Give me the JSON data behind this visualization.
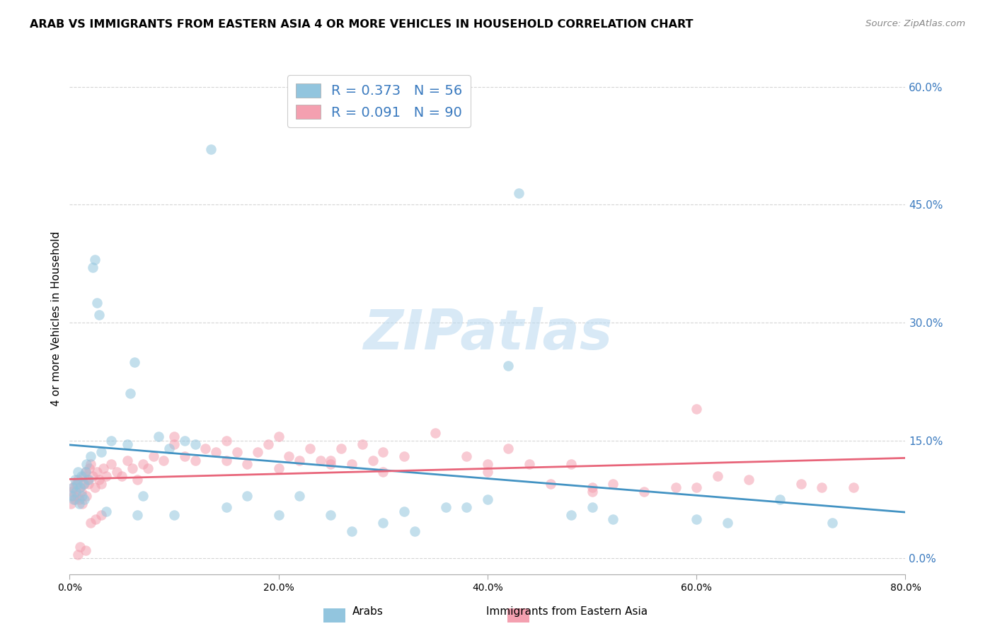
{
  "title": "ARAB VS IMMIGRANTS FROM EASTERN ASIA 4 OR MORE VEHICLES IN HOUSEHOLD CORRELATION CHART",
  "source": "Source: ZipAtlas.com",
  "ylabel": "4 or more Vehicles in Household",
  "ytick_labels": [
    "0.0%",
    "15.0%",
    "30.0%",
    "45.0%",
    "60.0%"
  ],
  "ytick_values": [
    0.0,
    15.0,
    30.0,
    45.0,
    60.0
  ],
  "xtick_labels": [
    "0.0%",
    "20.0%",
    "40.0%",
    "60.0%",
    "80.0%"
  ],
  "xtick_values": [
    0.0,
    20.0,
    40.0,
    60.0,
    80.0
  ],
  "xlim": [
    0.0,
    80.0
  ],
  "ylim": [
    -2.0,
    63.0
  ],
  "legend_label1": "Arabs",
  "legend_label2": "Immigrants from Eastern Asia",
  "R1": "0.373",
  "N1": "56",
  "R2": "0.091",
  "N2": "90",
  "blue_color": "#92c5de",
  "pink_color": "#f4a0b0",
  "blue_line_color": "#4393c3",
  "pink_line_color": "#e8657a",
  "watermark_text": "ZIPatlas",
  "arab_x": [
    0.2,
    0.3,
    0.4,
    0.5,
    0.6,
    0.7,
    0.8,
    0.9,
    1.0,
    1.1,
    1.2,
    1.3,
    1.4,
    1.5,
    1.6,
    1.8,
    2.0,
    2.2,
    2.4,
    2.6,
    2.8,
    3.0,
    3.5,
    4.0,
    5.5,
    5.8,
    6.2,
    7.0,
    8.5,
    9.5,
    11.0,
    12.0,
    13.5,
    17.0,
    20.0,
    25.0,
    30.0,
    32.0,
    36.0,
    40.0,
    42.0,
    43.0,
    48.0,
    52.0,
    60.0,
    63.0,
    68.0,
    73.0,
    15.0,
    6.5,
    10.0,
    22.0,
    27.0,
    33.0,
    38.0,
    50.0
  ],
  "arab_y": [
    8.0,
    9.0,
    7.5,
    10.0,
    8.5,
    9.5,
    11.0,
    7.0,
    9.0,
    10.5,
    8.0,
    9.5,
    7.5,
    11.0,
    12.0,
    10.0,
    13.0,
    37.0,
    38.0,
    32.5,
    31.0,
    13.5,
    6.0,
    15.0,
    14.5,
    21.0,
    25.0,
    8.0,
    15.5,
    14.0,
    15.0,
    14.5,
    52.0,
    8.0,
    5.5,
    5.5,
    4.5,
    6.0,
    6.5,
    7.5,
    24.5,
    46.5,
    5.5,
    5.0,
    5.0,
    4.5,
    7.5,
    4.5,
    6.5,
    5.5,
    5.5,
    8.0,
    3.5,
    3.5,
    6.5,
    6.5
  ],
  "asia_x": [
    0.1,
    0.2,
    0.3,
    0.4,
    0.5,
    0.6,
    0.7,
    0.8,
    0.9,
    1.0,
    1.1,
    1.2,
    1.3,
    1.4,
    1.5,
    1.6,
    1.7,
    1.8,
    1.9,
    2.0,
    2.2,
    2.4,
    2.6,
    2.8,
    3.0,
    3.2,
    3.5,
    4.0,
    4.5,
    5.0,
    5.5,
    6.0,
    6.5,
    7.0,
    7.5,
    8.0,
    9.0,
    10.0,
    11.0,
    12.0,
    13.0,
    14.0,
    15.0,
    16.0,
    17.0,
    18.0,
    19.0,
    20.0,
    21.0,
    22.0,
    23.0,
    24.0,
    25.0,
    26.0,
    27.0,
    28.0,
    29.0,
    30.0,
    32.0,
    35.0,
    38.0,
    40.0,
    42.0,
    44.0,
    46.0,
    48.0,
    50.0,
    52.0,
    55.0,
    58.0,
    60.0,
    62.0,
    65.0,
    70.0,
    72.0,
    75.0,
    3.0,
    2.5,
    2.0,
    1.5,
    1.0,
    0.8,
    10.0,
    15.0,
    20.0,
    25.0,
    30.0,
    40.0,
    50.0,
    60.0
  ],
  "asia_y": [
    7.0,
    8.5,
    9.0,
    8.0,
    7.5,
    9.5,
    8.0,
    10.0,
    7.5,
    9.0,
    8.5,
    7.0,
    10.5,
    9.5,
    11.0,
    8.0,
    10.0,
    9.5,
    11.5,
    12.0,
    10.5,
    9.0,
    11.0,
    10.0,
    9.5,
    11.5,
    10.5,
    12.0,
    11.0,
    10.5,
    12.5,
    11.5,
    10.0,
    12.0,
    11.5,
    13.0,
    12.5,
    14.5,
    13.0,
    12.5,
    14.0,
    13.5,
    15.0,
    13.5,
    12.0,
    13.5,
    14.5,
    11.5,
    13.0,
    12.5,
    14.0,
    12.5,
    12.5,
    14.0,
    12.0,
    14.5,
    12.5,
    13.5,
    13.0,
    16.0,
    13.0,
    12.0,
    14.0,
    12.0,
    9.5,
    12.0,
    9.0,
    9.5,
    8.5,
    9.0,
    19.0,
    10.5,
    10.0,
    9.5,
    9.0,
    9.0,
    5.5,
    5.0,
    4.5,
    1.0,
    1.5,
    0.5,
    15.5,
    12.5,
    15.5,
    12.0,
    11.0,
    11.0,
    8.5,
    9.0
  ]
}
